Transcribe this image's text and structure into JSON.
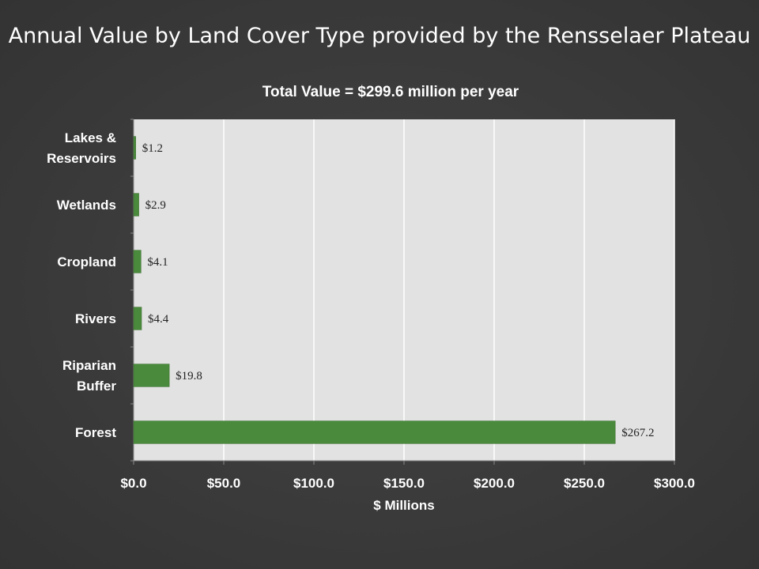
{
  "slide": {
    "title": "Annual Value by Land Cover Type provided by the Rensselaer Plateau"
  },
  "colors": {
    "background": "#3a3a3a",
    "plot_area": "#e2e2e2",
    "bar": "#4a8a3c",
    "gridline": "#ffffff",
    "text": "#ffffff"
  },
  "chart_data": {
    "type": "bar",
    "orientation": "horizontal",
    "title": "Total Value = $299.6 million per year",
    "xlabel": "$ Millions",
    "ylabel": "",
    "categories": [
      "Lakes & Reservoirs",
      "Wetlands",
      "Cropland",
      "Rivers",
      "Riparian Buffer",
      "Forest"
    ],
    "category_lines": [
      [
        "Lakes &",
        "Reservoirs"
      ],
      [
        "Wetlands"
      ],
      [
        "Cropland"
      ],
      [
        "Rivers"
      ],
      [
        "Riparian",
        "Buffer"
      ],
      [
        "Forest"
      ]
    ],
    "values": [
      1.2,
      2.9,
      4.1,
      4.4,
      19.8,
      267.2
    ],
    "data_labels": [
      "$1.2",
      "$2.9",
      "$4.1",
      "$4.4",
      "$19.8",
      "$267.2"
    ],
    "xlim": [
      0,
      300
    ],
    "xticks": [
      0,
      50,
      100,
      150,
      200,
      250,
      300
    ],
    "xtick_labels": [
      "$0.0",
      "$50.0",
      "$100.0",
      "$150.0",
      "$200.0",
      "$250.0",
      "$300.0"
    ],
    "grid": true,
    "legend": "none"
  }
}
